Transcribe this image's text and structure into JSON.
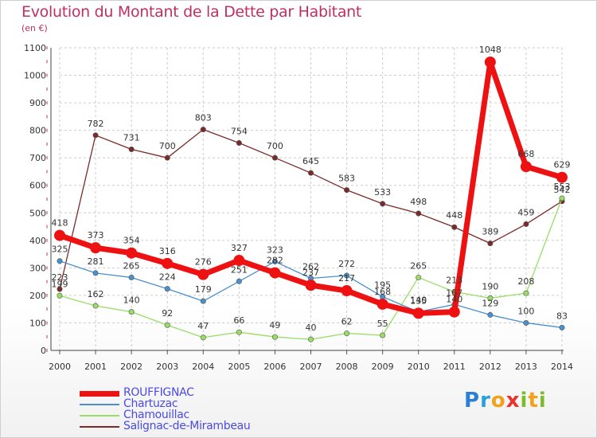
{
  "title": "Evolution du Montant de la Dette par Habitant",
  "subtitle": "(en €)",
  "logo": {
    "letters": [
      "P",
      "r",
      "o",
      "x",
      "i",
      "t",
      "i"
    ],
    "colors": [
      "#2a7fd0",
      "#2aa0d8",
      "#f2a21a",
      "#e8322d",
      "#7cbc2a",
      "#f2a21a",
      "#7cbc2a"
    ]
  },
  "chart_data": {
    "type": "line",
    "x": [
      "2000",
      "2001",
      "2002",
      "2003",
      "2004",
      "2005",
      "2006",
      "2007",
      "2008",
      "2009",
      "2010",
      "2011",
      "2012",
      "2013",
      "2014"
    ],
    "ylim": [
      0,
      1100
    ],
    "yticks": [
      0,
      100,
      200,
      300,
      400,
      500,
      600,
      700,
      800,
      900,
      1000,
      1100
    ],
    "grid": true,
    "legend_position": "bottom-left",
    "series": [
      {
        "name": "Salignac-de-Mirambeau",
        "color": "#7a2a2a",
        "values": [
          223,
          782,
          731,
          700,
          803,
          754,
          700,
          645,
          583,
          533,
          498,
          448,
          389,
          459,
          542
        ]
      },
      {
        "name": "Chamouillac",
        "color": "#99dd66",
        "values": [
          199,
          162,
          140,
          92,
          47,
          66,
          49,
          40,
          62,
          55,
          265,
          213,
          190,
          208,
          553
        ]
      },
      {
        "name": "Chartuzac",
        "color": "#4a90cc",
        "values": [
          325,
          281,
          265,
          224,
          179,
          251,
          323,
          262,
          272,
          195,
          140,
          167,
          129,
          100,
          83
        ]
      },
      {
        "name": "ROUFFIGNAC",
        "color": "#ee1111",
        "values": [
          418,
          373,
          354,
          316,
          276,
          327,
          282,
          237,
          217,
          168,
          135,
          140,
          1048,
          668,
          629
        ]
      }
    ]
  },
  "legend": [
    {
      "label": "ROUFFIGNAC",
      "color": "#ee1111"
    },
    {
      "label": "Chartuzac",
      "color": "#4a90cc"
    },
    {
      "label": "Chamouillac",
      "color": "#99dd66"
    },
    {
      "label": "Salignac-de-Mirambeau",
      "color": "#7a2a2a"
    }
  ]
}
